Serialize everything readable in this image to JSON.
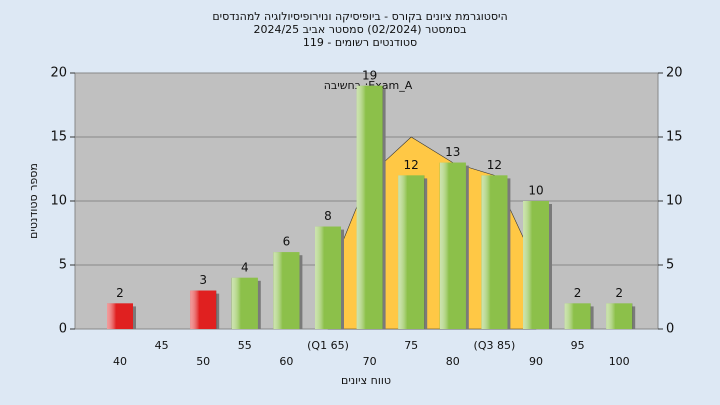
{
  "chart_data": {
    "type": "bar",
    "title": [
      "היסטוגרמת ציונים בקורס - ביופיסיקה ונוירופיסיולוגיה למהנדסים",
      "בסמסטר  (02/2024)  סמסטר אביב 2024/25",
      "סטודנטים רשומים - 119"
    ],
    "annotation": "בחשיבה :Exam_A",
    "x_label": "טווח ציונים",
    "y_label": "מספר סטודנטים",
    "categories": [
      "40",
      "45",
      "50",
      "55",
      "60",
      "(Q1 65)",
      "70",
      "75",
      "80",
      "(Q3 85)",
      "90",
      "95",
      "100"
    ],
    "values": [
      2,
      null,
      3,
      4,
      6,
      8,
      19,
      12,
      13,
      12,
      10,
      2,
      2
    ],
    "colors": [
      "#e02020",
      null,
      "#e02020",
      "#8cc04a",
      "#8cc04a",
      "#8cc04a",
      "#8cc04a",
      "#8cc04a",
      "#8cc04a",
      "#8cc04a",
      "#8cc04a",
      "#8cc04a",
      "#8cc04a"
    ],
    "curve": {
      "color": "#ffc845",
      "values": [
        null,
        null,
        null,
        null,
        null,
        4,
        12,
        15,
        13,
        12,
        5,
        null,
        null
      ]
    },
    "ylim": [
      0,
      20
    ],
    "yticks": [
      0,
      5,
      10,
      15,
      20
    ],
    "y2lim": [
      0,
      20
    ],
    "y2ticks": [
      0,
      5,
      10,
      15,
      20
    ],
    "grid": true
  }
}
